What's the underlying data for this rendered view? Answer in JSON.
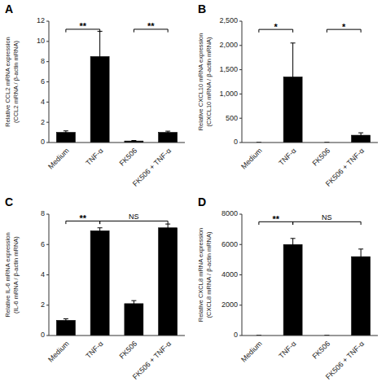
{
  "chart_data": [
    {
      "type": "bar",
      "title": "A",
      "ylabel": "Relative CCL2 mRNA expression\n(CCL2 mRNA / β-actin mRNA)",
      "categories": [
        "Medium",
        "TNF-α",
        "FK506",
        "FK506 + TNF-α"
      ],
      "values": [
        1.0,
        8.5,
        0.15,
        1.0
      ],
      "errors": [
        0.15,
        2.5,
        0.05,
        0.12
      ],
      "color": "#000000",
      "ylim": [
        0,
        12
      ],
      "yticks": [
        0,
        2,
        4,
        6,
        8,
        10,
        12
      ],
      "grid": false,
      "annotations": [
        {
          "text": "**",
          "from": "Medium",
          "to": "TNF-α",
          "y": 11.2
        },
        {
          "text": "**",
          "from": "FK506",
          "to": "FK506 + TNF-α",
          "y": 11.2
        }
      ]
    },
    {
      "type": "bar",
      "title": "B",
      "ylabel": "Relative CXCL10 mRNA expression\n(CXCL10 mRNA / β-actin mRNA)",
      "categories": [
        "Medium",
        "TNF-α",
        "FK506",
        "FK506 + TNF-α"
      ],
      "values": [
        0,
        1350,
        0,
        150
      ],
      "errors": [
        0,
        700,
        0,
        50
      ],
      "color": "#000000",
      "ylim": [
        0,
        2500
      ],
      "yticks": [
        0,
        500,
        {
          "value": 1000,
          "label": "1,000"
        },
        {
          "value": 1500,
          "label": "1,500"
        },
        {
          "value": 2000,
          "label": "2,000"
        },
        {
          "value": 2500,
          "label": "2,500"
        }
      ],
      "grid": false,
      "annotations": [
        {
          "text": "*",
          "from": "Medium",
          "to": "TNF-α",
          "y": 2330
        },
        {
          "text": "*",
          "from": "FK506",
          "to": "FK506 + TNF-α",
          "y": 2330
        }
      ]
    },
    {
      "type": "bar",
      "title": "C",
      "ylabel": "Relative IL-6 mRNA expression\n(IL-6 mRNA / β-actin mRNA)",
      "categories": [
        "Medium",
        "TNF-α",
        "FK506",
        "FK506 + TNF-α"
      ],
      "values": [
        1.0,
        6.9,
        2.1,
        7.1
      ],
      "errors": [
        0.1,
        0.2,
        0.2,
        0.25
      ],
      "color": "#000000",
      "ylim": [
        0,
        8
      ],
      "yticks": [
        0,
        2,
        4,
        6,
        8
      ],
      "grid": false,
      "annotations": [
        {
          "text": "**",
          "from": "Medium",
          "to": "TNF-α",
          "y": 7.55
        },
        {
          "text": "NS",
          "from": "TNF-α",
          "to": "FK506 + TNF-α",
          "y": 7.55
        }
      ]
    },
    {
      "type": "bar",
      "title": "D",
      "ylabel": "Relative CXCL8 mRNA expression\n(CXCL8 mRNA / β-actin mRNA)",
      "categories": [
        "Medium",
        "TNF-α",
        "FK506",
        "FK506 + TNF-α"
      ],
      "values": [
        0,
        6000,
        0,
        5200
      ],
      "errors": [
        0,
        400,
        0,
        500
      ],
      "color": "#000000",
      "ylim": [
        0,
        8000
      ],
      "yticks": [
        0,
        2000,
        4000,
        6000,
        8000
      ],
      "grid": false,
      "annotations": [
        {
          "text": "**",
          "from": "Medium",
          "to": "TNF-α",
          "y": 7500
        },
        {
          "text": "NS",
          "from": "TNF-α",
          "to": "FK506 + TNF-α",
          "y": 7500
        }
      ]
    }
  ]
}
